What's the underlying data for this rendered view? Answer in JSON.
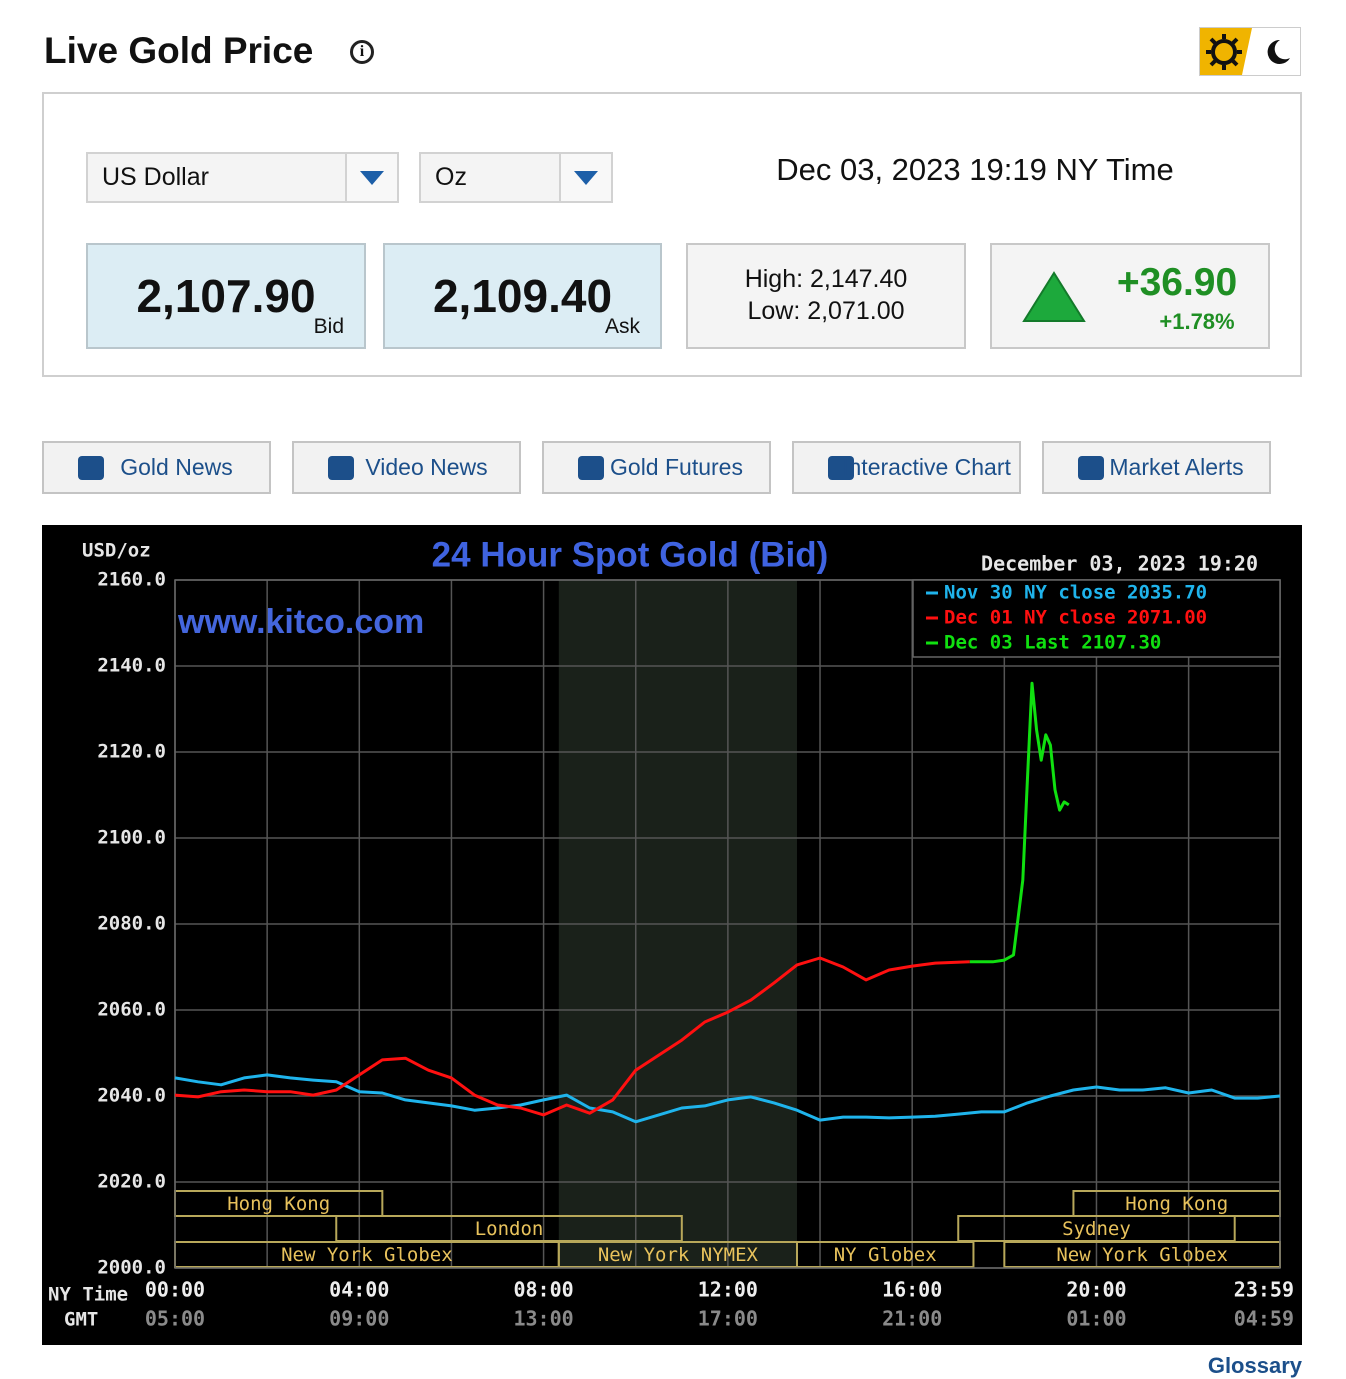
{
  "header": {
    "title": "Live Gold Price"
  },
  "selectors": {
    "currency": "US Dollar",
    "unit": "Oz"
  },
  "timestamp": "Dec 03, 2023 19:19 NY Time",
  "quote": {
    "bid": "2,107.90",
    "bid_label": "Bid",
    "ask": "2,109.40",
    "ask_label": "Ask",
    "high": "High: 2,147.40",
    "low": "Low: 2,071.00",
    "change": "+36.90",
    "change_pct": "+1.78%"
  },
  "nav": [
    "Gold News",
    "Video News",
    "Gold Futures",
    "Interactive Chart",
    "Market Alerts"
  ],
  "chart_data": {
    "type": "line",
    "title": "24 Hour Spot Gold (Bid)",
    "y_label": "USD/oz",
    "watermark": "www.kitco.com",
    "timestamp": "December 03, 2023 19:20",
    "x_label": "NY Time",
    "x2_label": "GMT",
    "xlim": [
      0,
      23.9833
    ],
    "ylim": [
      2000,
      2160
    ],
    "xticks": [
      {
        "value": 0,
        "label": "00:00"
      },
      {
        "value": 4,
        "label": "04:00"
      },
      {
        "value": 8,
        "label": "08:00"
      },
      {
        "value": 12,
        "label": "12:00"
      },
      {
        "value": 16,
        "label": "16:00"
      },
      {
        "value": 20,
        "label": "20:00"
      },
      {
        "value": 23.9833,
        "label": "23:59"
      }
    ],
    "x2_labels": [
      "05:00",
      "09:00",
      "13:00",
      "17:00",
      "21:00",
      "01:00",
      "04:59"
    ],
    "xminor_ticks": [
      2,
      6,
      10,
      14,
      18,
      22
    ],
    "yticks": [
      {
        "value": 2000,
        "label": "2000.0"
      },
      {
        "value": 2020,
        "label": "2020.0"
      },
      {
        "value": 2040,
        "label": "2040.0"
      },
      {
        "value": 2060,
        "label": "2060.0"
      },
      {
        "value": 2080,
        "label": "2080.0"
      },
      {
        "value": 2100,
        "label": "2100.0"
      },
      {
        "value": 2120,
        "label": "2120.0"
      },
      {
        "value": 2140,
        "label": "2140.0"
      },
      {
        "value": 2160,
        "label": "2160.0"
      }
    ],
    "grid": true,
    "shaded": [
      8.33,
      13.5
    ],
    "session_rows": [
      [
        {
          "label": "Hong Kong",
          "start": 0,
          "end": 4.5
        },
        {
          "label": "Hong Kong",
          "start": 19.5,
          "end": 23.9833
        }
      ],
      [
        {
          "label": "London",
          "start": 3.5,
          "end": 11
        },
        {
          "label": "Sydney",
          "start": 17,
          "end": 23
        }
      ],
      [
        {
          "label": "New York Globex",
          "start": 0,
          "end": 8.33
        },
        {
          "label": "New York NYMEX",
          "start": 8.33,
          "end": 13.5
        },
        {
          "label": "NY Globex",
          "start": 13.5,
          "end": 17.33
        },
        {
          "label": "New York Globex",
          "start": 18,
          "end": 23.9833
        }
      ]
    ],
    "series": [
      {
        "name": "Nov 30 NY close 2035.70",
        "color": "#1fb4ec",
        "x": [
          0,
          0.5,
          1,
          1.5,
          2,
          2.5,
          3,
          3.5,
          4,
          4.5,
          5,
          5.5,
          6,
          6.5,
          7,
          7.5,
          8,
          8.5,
          9,
          9.5,
          10,
          10.5,
          11,
          11.5,
          12,
          12.5,
          13,
          13.5,
          14,
          14.5,
          15,
          15.5,
          16,
          16.5,
          17,
          17.5,
          18,
          18.5,
          19,
          19.5,
          20,
          20.5,
          21,
          21.5,
          22,
          22.5,
          23,
          23.5,
          23.9833
        ],
        "values": [
          2044.2,
          2043.3,
          2042.6,
          2044.2,
          2044.9,
          2044.2,
          2043.7,
          2043.3,
          2041,
          2040.7,
          2039.1,
          2038.4,
          2037.7,
          2036.7,
          2037.2,
          2037.9,
          2039.1,
          2040.2,
          2037.2,
          2036.3,
          2034,
          2035.6,
          2037.2,
          2037.7,
          2039.1,
          2039.8,
          2038.4,
          2036.7,
          2034.4,
          2035.1,
          2035.1,
          2034.9,
          2035.1,
          2035.3,
          2035.8,
          2036.3,
          2036.3,
          2038.4,
          2040,
          2041.4,
          2042.1,
          2041.4,
          2041.4,
          2041.9,
          2040.7,
          2041.4,
          2039.5,
          2039.5,
          2040
        ]
      },
      {
        "name": "Dec 01 NY close 2071.00",
        "color": "#ff1010",
        "x": [
          0,
          0.5,
          1,
          1.5,
          2,
          2.5,
          3,
          3.5,
          4,
          4.5,
          5,
          5.5,
          6,
          6.5,
          7,
          7.5,
          8,
          8.5,
          9,
          9.5,
          10,
          10.5,
          11,
          11.5,
          12,
          12.5,
          13,
          13.5,
          14,
          14.5,
          15,
          15.5,
          16,
          16.5,
          17.25
        ],
        "values": [
          2040.2,
          2039.8,
          2041,
          2041.4,
          2041,
          2041,
          2040.2,
          2041.4,
          2044.9,
          2048.4,
          2048.8,
          2046,
          2044.2,
          2040.2,
          2037.9,
          2037.2,
          2035.6,
          2037.9,
          2036,
          2039.1,
          2046,
          2049.5,
          2053,
          2057.2,
          2059.5,
          2062.3,
          2066.3,
          2070.5,
          2072.1,
          2070,
          2067,
          2069.3,
          2070.2,
          2070.9,
          2071.2
        ]
      },
      {
        "name": "Dec 03 Last 2107.30",
        "color": "#10e010",
        "x": [
          17.25,
          17.75,
          18,
          18.2,
          18.4,
          18.5,
          18.6,
          18.7,
          18.8,
          18.9,
          19,
          19.1,
          19.2,
          19.3,
          19.4
        ],
        "values": [
          2071.2,
          2071.2,
          2071.6,
          2072.8,
          2090.2,
          2113.5,
          2136,
          2125.1,
          2118.1,
          2124,
          2121.6,
          2111.2,
          2106.5,
          2108.4,
          2107.7
        ]
      }
    ]
  },
  "footer": {
    "link": "Glossary"
  }
}
